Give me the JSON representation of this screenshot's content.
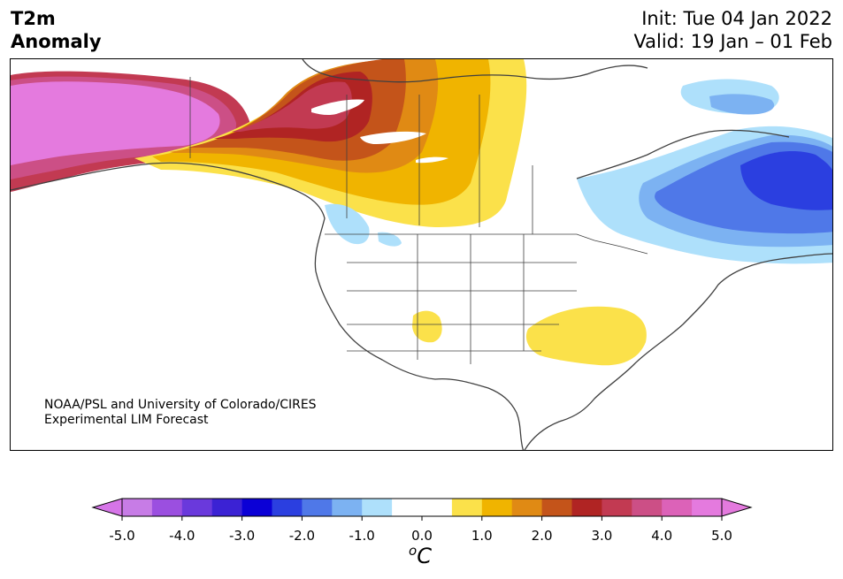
{
  "header": {
    "variable": "T2m",
    "field": "Anomaly",
    "init": "Init: Tue 04 Jan 2022",
    "valid": "Valid: 19 Jan – 01 Feb"
  },
  "credit": {
    "line1": "NOAA/PSL and University of Colorado/CIRES",
    "line2": "Experimental LIM Forecast"
  },
  "colorbar": {
    "colors": [
      "#c77ce6",
      "#9b4fe0",
      "#6a39dc",
      "#3b22d4",
      "#0b00d6",
      "#2b3fe0",
      "#4f78e8",
      "#7cb2f2",
      "#aee0fb",
      "#ffffff",
      "#ffffff",
      "#fbe14a",
      "#f0b400",
      "#e08a14",
      "#c4541a",
      "#b02423",
      "#c23a52",
      "#cc4f86",
      "#dc62b8",
      "#e47ade"
    ],
    "min_color": "#d675e8",
    "max_color": "#e47ade",
    "ticks": [
      "-5.0",
      "-4.0",
      "-3.0",
      "-2.0",
      "-1.0",
      "0.0",
      "1.0",
      "2.0",
      "3.0",
      "4.0",
      "5.0"
    ],
    "unit_sup": "o",
    "unit": "C"
  },
  "map_regions": [
    "Alaska warm anomaly (> +5.0)",
    "Western/Central Canada warm anomaly",
    "Eastern Canada cold anomaly (to -3.0)",
    "Southeastern US warm anomaly (+0.5 to +1.0)"
  ]
}
